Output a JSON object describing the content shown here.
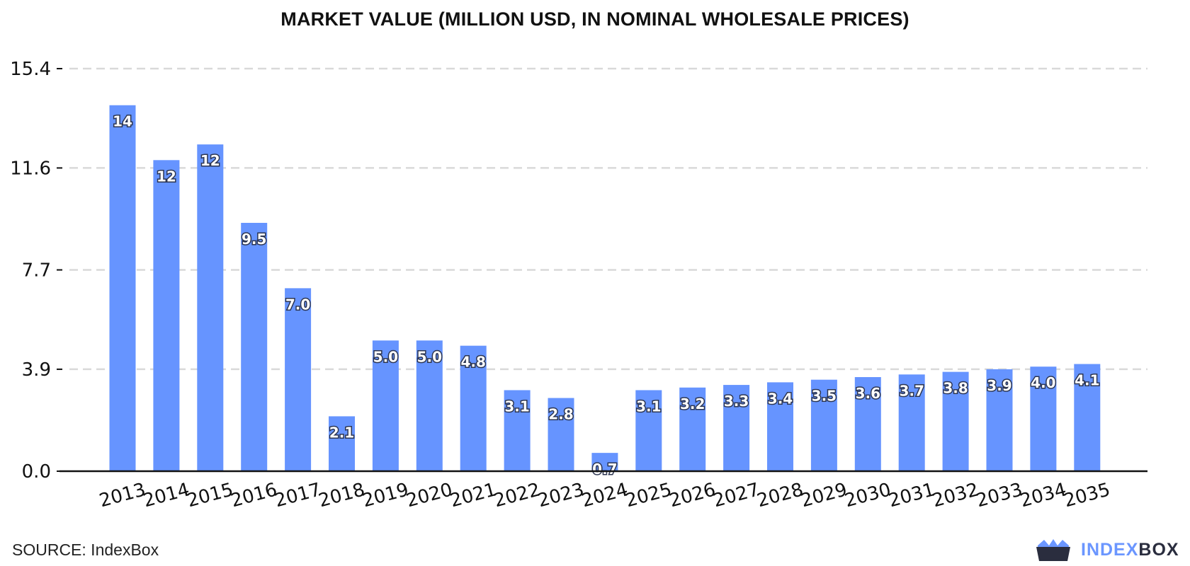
{
  "chart_data": {
    "type": "bar",
    "title": "MARKET VALUE (MILLION USD, IN NOMINAL WHOLESALE PRICES)",
    "xlabel": "",
    "ylabel": "",
    "categories": [
      "2013",
      "2014",
      "2015",
      "2016",
      "2017",
      "2018",
      "2019",
      "2020",
      "2021",
      "2022",
      "2023",
      "2024",
      "2025",
      "2026",
      "2027",
      "2028",
      "2029",
      "2030",
      "2031",
      "2032",
      "2033",
      "2034",
      "2035"
    ],
    "values": [
      14.0,
      11.9,
      12.5,
      9.5,
      7.0,
      2.1,
      5.0,
      5.0,
      4.8,
      3.1,
      2.8,
      0.7,
      3.1,
      3.2,
      3.3,
      3.4,
      3.5,
      3.6,
      3.7,
      3.8,
      3.9,
      4.0,
      4.1
    ],
    "value_labels": [
      "14",
      "12",
      "12",
      "9.5",
      "7.0",
      "2.1",
      "5.0",
      "5.0",
      "4.8",
      "3.1",
      "2.8",
      "0.7",
      "3.1",
      "3.2",
      "3.3",
      "3.4",
      "3.5",
      "3.6",
      "3.7",
      "3.8",
      "3.9",
      "4.0",
      "4.1"
    ],
    "y_ticks": [
      0.0,
      3.9,
      7.7,
      11.6,
      15.4
    ],
    "y_tick_labels": [
      "0.0",
      "3.9",
      "7.7",
      "11.6",
      "15.4"
    ],
    "ylim": [
      0,
      15.4
    ],
    "grid": "horizontal dashed",
    "legend": "none",
    "bar_color": "#6694ff",
    "grid_color": "#d9d9d9",
    "axis_color": "#111111"
  },
  "footer": {
    "source": "SOURCE: IndexBox"
  },
  "brand": {
    "name_part1": "INDEX",
    "name_part2": "BOX",
    "icon": "indexbox-crown-box-icon",
    "color_primary": "#6b96ff",
    "color_dark": "#2a2d3e"
  }
}
